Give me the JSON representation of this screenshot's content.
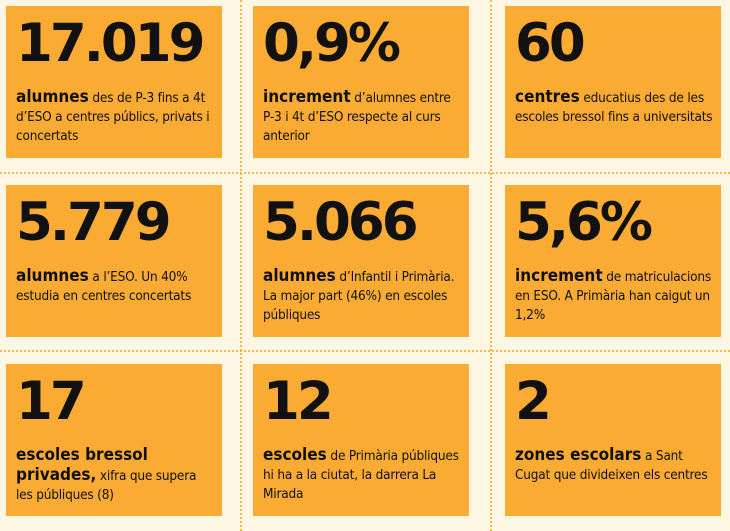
{
  "cards": [
    {
      "number": "17.019",
      "keyword": "alumnes",
      "text": " des de P-3 fins a 4t d’ESO a centres públics, privats i concertats"
    },
    {
      "number": "0,9%",
      "keyword": "increment",
      "text": " d’alumnes entre P-3 i 4t d’ESO respecte al curs anterior"
    },
    {
      "number": "60",
      "keyword": "centres",
      "text": " educatius des de les escoles bressol fins a universitats"
    },
    {
      "number": "5.779",
      "keyword": "alumnes",
      "text": " a l’ESO. Un 40% estudia en centres concertats"
    },
    {
      "number": "5.066",
      "keyword": "alumnes",
      "text": " d’Infantil i Primària. La major part (46%) en escoles públiques"
    },
    {
      "number": "5,6%",
      "keyword": "increment",
      "text": " de matriculacions en ESO. A Primària han caigut un 1,2%"
    },
    {
      "number": "17",
      "keyword": "escoles bressol privades,",
      "text": " xifra que supera les públiques (8)"
    },
    {
      "number": "12",
      "keyword": "escoles",
      "text": " de Primària públiques hi ha a la ciutat, la darrera La Mirada"
    },
    {
      "number": "2",
      "keyword": "zones escolars",
      "text": " a Sant Cugat que divideixen els centres"
    }
  ],
  "colors": {
    "card": "#f9ab33",
    "background": "#fdf6e3",
    "dots": "#f1b94a"
  }
}
